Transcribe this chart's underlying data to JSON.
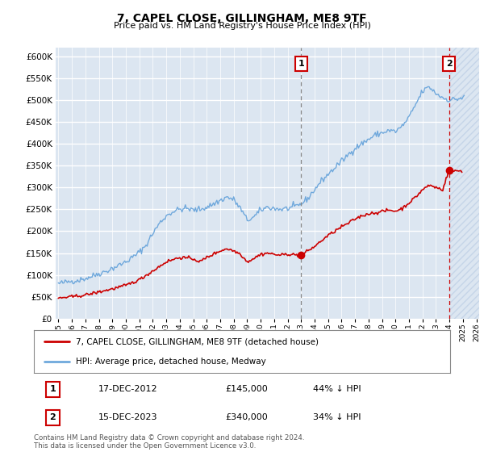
{
  "title": "7, CAPEL CLOSE, GILLINGHAM, ME8 9TF",
  "subtitle": "Price paid vs. HM Land Registry's House Price Index (HPI)",
  "ytick_values": [
    0,
    50000,
    100000,
    150000,
    200000,
    250000,
    300000,
    350000,
    400000,
    450000,
    500000,
    550000,
    600000
  ],
  "xlim_start": 1995,
  "xlim_end": 2026,
  "ylim_min": 0,
  "ylim_max": 620000,
  "hpi_color": "#6fa8dc",
  "price_color": "#cc0000",
  "marker1_date_x": 2013.0,
  "marker1_price": 145000,
  "marker1_label": "1",
  "marker2_date_x": 2023.96,
  "marker2_price": 340000,
  "marker2_label": "2",
  "legend_line1": "7, CAPEL CLOSE, GILLINGHAM, ME8 9TF (detached house)",
  "legend_line2": "HPI: Average price, detached house, Medway",
  "table_row1_num": "1",
  "table_row1_date": "17-DEC-2012",
  "table_row1_price": "£145,000",
  "table_row1_hpi": "44% ↓ HPI",
  "table_row2_num": "2",
  "table_row2_date": "15-DEC-2023",
  "table_row2_price": "£340,000",
  "table_row2_hpi": "34% ↓ HPI",
  "footnote": "Contains HM Land Registry data © Crown copyright and database right 2024.\nThis data is licensed under the Open Government Licence v3.0.",
  "bg_color": "#dce6f1",
  "hatch_color": "#c5d5e8",
  "grid_color": "#ffffff",
  "marker1_line_color": "#888888",
  "marker2_line_color": "#cc0000"
}
